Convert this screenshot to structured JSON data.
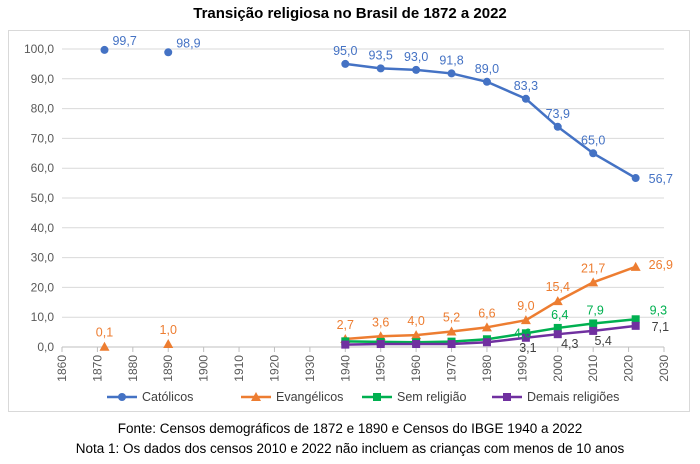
{
  "chart_data": {
    "type": "line",
    "title": "Transição religiosa no Brasil de 1872 a 2022",
    "xlabel": "",
    "ylabel": "",
    "xlim": [
      1860,
      2030
    ],
    "ylim": [
      0,
      100
    ],
    "x_ticks": [
      "1860",
      "1870",
      "1880",
      "1890",
      "1900",
      "1910",
      "1920",
      "1930",
      "1940",
      "1950",
      "1960",
      "1970",
      "1980",
      "1990",
      "2000",
      "2010",
      "2020",
      "2030"
    ],
    "y_ticks": [
      "0,0",
      "10,0",
      "20,0",
      "30,0",
      "40,0",
      "50,0",
      "60,0",
      "70,0",
      "80,0",
      "90,0",
      "100,0"
    ],
    "grid": true,
    "legend_position": "bottom",
    "series": [
      {
        "name": "Católicos",
        "color": "#4472c4",
        "marker": "circle",
        "points": [
          [
            1872,
            99.7
          ],
          [
            1890,
            98.9
          ],
          [
            1940,
            95.0
          ],
          [
            1950,
            93.5
          ],
          [
            1960,
            93.0
          ],
          [
            1970,
            91.8
          ],
          [
            1980,
            89.0
          ],
          [
            1991,
            83.3
          ],
          [
            2000,
            73.9
          ],
          [
            2010,
            65.0
          ],
          [
            2022,
            56.7
          ]
        ],
        "labels": [
          "99,7",
          "98,9",
          "95,0",
          "93,5",
          "93,0",
          "91,8",
          "89,0",
          "83,3",
          "73,9",
          "65,0",
          "56,7"
        ],
        "segments": [
          [
            0,
            0
          ],
          [
            1,
            1
          ],
          [
            2,
            10
          ]
        ]
      },
      {
        "name": "Evangélicos",
        "color": "#ed7d31",
        "marker": "triangle",
        "points": [
          [
            1872,
            0.1
          ],
          [
            1890,
            1.0
          ],
          [
            1940,
            2.7
          ],
          [
            1950,
            3.6
          ],
          [
            1960,
            4.0
          ],
          [
            1970,
            5.2
          ],
          [
            1980,
            6.6
          ],
          [
            1991,
            9.0
          ],
          [
            2000,
            15.4
          ],
          [
            2010,
            21.7
          ],
          [
            2022,
            26.9
          ]
        ],
        "labels": [
          "0,1",
          "1,0",
          "2,7",
          "3,6",
          "4,0",
          "5,2",
          "6,6",
          "9,0",
          "15,4",
          "21,7",
          "26,9"
        ],
        "segments": [
          [
            0,
            0
          ],
          [
            1,
            1
          ],
          [
            2,
            10
          ]
        ]
      },
      {
        "name": "Sem religião",
        "color": "#00b050",
        "marker": "square",
        "points": [
          [
            1940,
            1.9
          ],
          [
            1950,
            1.7
          ],
          [
            1960,
            1.6
          ],
          [
            1970,
            1.8
          ],
          [
            1980,
            2.6
          ],
          [
            1991,
            4.6
          ],
          [
            2000,
            6.4
          ],
          [
            2010,
            7.9
          ],
          [
            2022,
            9.3
          ]
        ],
        "labels": [
          "",
          "",
          "",
          "",
          "",
          "4,6",
          "6,4",
          "7,9",
          "9,3"
        ],
        "segments": [
          [
            0,
            8
          ]
        ]
      },
      {
        "name": "Demais religiões",
        "color": "#7030a0",
        "marker": "square",
        "points": [
          [
            1940,
            0.8
          ],
          [
            1950,
            1.0
          ],
          [
            1960,
            1.0
          ],
          [
            1970,
            1.0
          ],
          [
            1980,
            1.6
          ],
          [
            1991,
            3.1
          ],
          [
            2000,
            4.3
          ],
          [
            2010,
            5.4
          ],
          [
            2022,
            7.1
          ]
        ],
        "labels": [
          "",
          "",
          "",
          "",
          "",
          "3,1",
          "4,3",
          "5,4",
          "7,1"
        ],
        "segments": [
          [
            0,
            8
          ]
        ]
      }
    ]
  },
  "footer": {
    "source": "Fonte: Censos demográficos de 1872 e 1890 e Censos do IBGE 1940 a 2022",
    "note": "Nota 1: Os dados dos censos 2010 e 2022 não incluem as crianças com menos de 10 anos"
  }
}
